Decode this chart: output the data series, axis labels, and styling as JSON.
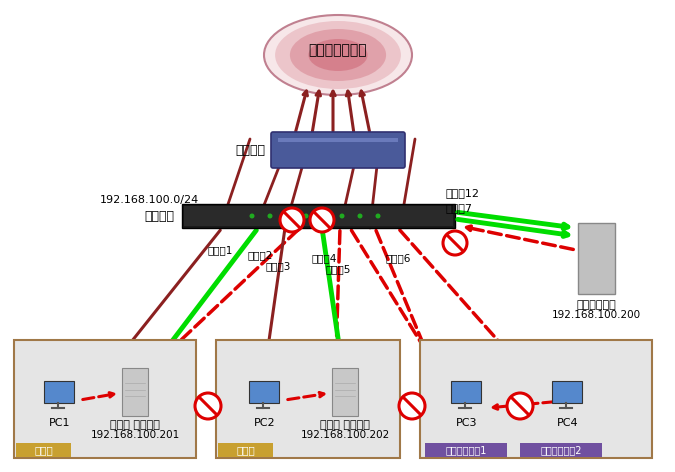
{
  "internet_label": "インターネット",
  "router_label": "ルーター",
  "switch_label": "スイッチ",
  "ip_subnet": "192.168.100.0/24",
  "port1": "ポート1",
  "port2": "ポート2",
  "port3": "ポート3",
  "port4": "ポート4",
  "port5": "ポート5",
  "port6": "ポート6",
  "port7": "ポート7",
  "port12": "ポート12",
  "server_label1": "社内サーバー",
  "server_label2": "192.168.100.200",
  "box1_label": "部門１",
  "box2_label": "部門２",
  "box3_label": "ゲストルーム1",
  "box4_label": "ゲストルーム2",
  "pc1_label": "PC1",
  "pc2_label": "PC2",
  "pc3_label": "PC3",
  "pc4_label": "PC4",
  "dept1_server1": "部門１ サーバー",
  "dept1_server2": "192.168.100.201",
  "dept2_server1": "部門２ サーバー",
  "dept2_server2": "192.168.100.202",
  "bg_color": "#ffffff",
  "cloud_color": "#dba0a8",
  "cloud_edge": "#c08090",
  "router_color": "#4a5a9a",
  "router_edge": "#303070",
  "switch_color": "#1a1a1a",
  "switch_edge": "#000000",
  "box_bg": "#e5e5e5",
  "box_border": "#a07848",
  "green_arrow": "#00dd00",
  "red_arrow": "#dd0000",
  "brown_arrow": "#8b2020",
  "dept_tag": "#c8a030",
  "guest_tag": "#7050a0",
  "srv_color": "#c8c8c8",
  "pc_color": "#5588cc"
}
